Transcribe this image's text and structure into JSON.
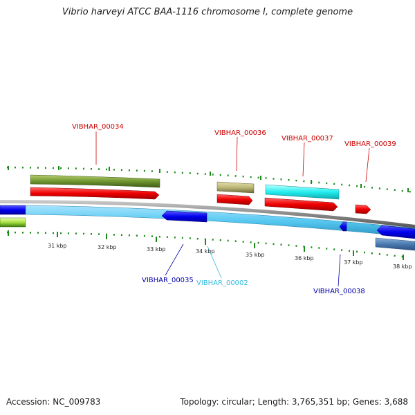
{
  "title": "Vibrio harveyi ATCC BAA-1116 chromosome I, complete genome",
  "footer": {
    "accession": "Accession: NC_009783",
    "info": "Topology: circular; Length: 3,765,351 bp; Genes: 3,688"
  },
  "colors": {
    "forward_cds": "#ee0000",
    "reverse_cds": "#0000ee",
    "forward_label": "#cc0000",
    "reverse_label": "#0000aa",
    "cyan_label": "#33bbdd",
    "backbone": "#888888",
    "tick": "#1a8a1a"
  },
  "gene_labels": [
    {
      "id": "VIBHAR_00034",
      "strand": "forward"
    },
    {
      "id": "VIBHAR_00036",
      "strand": "forward"
    },
    {
      "id": "VIBHAR_00037",
      "strand": "forward"
    },
    {
      "id": "VIBHAR_00039",
      "strand": "forward"
    },
    {
      "id": "VIBHAR_00035",
      "strand": "reverse"
    },
    {
      "id": "VIBHAR_00002",
      "strand": "reverse-cyan"
    },
    {
      "id": "VIBHAR_00038",
      "strand": "reverse"
    }
  ],
  "kbp_labels": [
    "31 kbp",
    "32 kbp",
    "33 kbp",
    "34 kbp",
    "35 kbp",
    "36 kbp",
    "37 kbp",
    "38 kbp"
  ]
}
